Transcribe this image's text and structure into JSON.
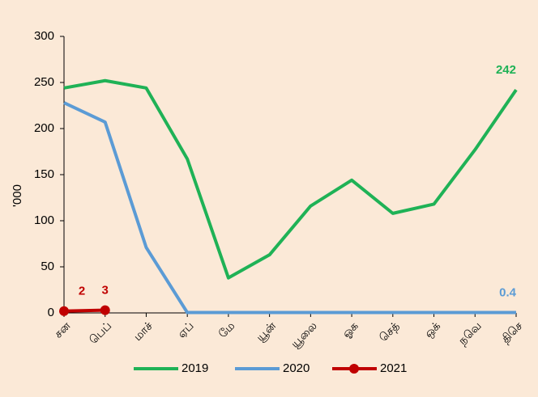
{
  "chart_data": {
    "type": "line",
    "categories": [
      "சன",
      "பெப்",
      "மாச்",
      "ஏப்",
      "மே",
      "யூன்",
      "யூலை",
      "ஓக",
      "செத்",
      "ஒக்",
      "நவெ",
      "திசெ"
    ],
    "y_label": "'000",
    "ylim": [
      0,
      300
    ],
    "yticks": [
      0,
      50,
      100,
      150,
      200,
      250,
      300
    ],
    "grid": false,
    "legend": "bottom",
    "series": [
      {
        "name": "2019",
        "color": "#1fb256",
        "marker": false,
        "values": [
          244,
          252,
          244,
          167,
          38,
          63,
          116,
          144,
          108,
          118,
          177,
          242
        ],
        "value_labels": [
          null,
          null,
          null,
          null,
          null,
          null,
          null,
          null,
          null,
          null,
          null,
          "242"
        ]
      },
      {
        "name": "2020",
        "color": "#5b9bd5",
        "marker": false,
        "values": [
          228,
          207,
          71,
          0.4,
          0.4,
          0.4,
          0.4,
          0.4,
          0.4,
          0.4,
          0.4,
          0.4
        ],
        "value_labels": [
          null,
          null,
          null,
          null,
          null,
          null,
          null,
          null,
          null,
          null,
          null,
          "0.4"
        ]
      },
      {
        "name": "2021",
        "color": "#c00000",
        "marker": true,
        "values": [
          2,
          3,
          null,
          null,
          null,
          null,
          null,
          null,
          null,
          null,
          null,
          null
        ],
        "value_labels": [
          "2",
          "3",
          null,
          null,
          null,
          null,
          null,
          null,
          null,
          null,
          null,
          null
        ]
      }
    ]
  }
}
